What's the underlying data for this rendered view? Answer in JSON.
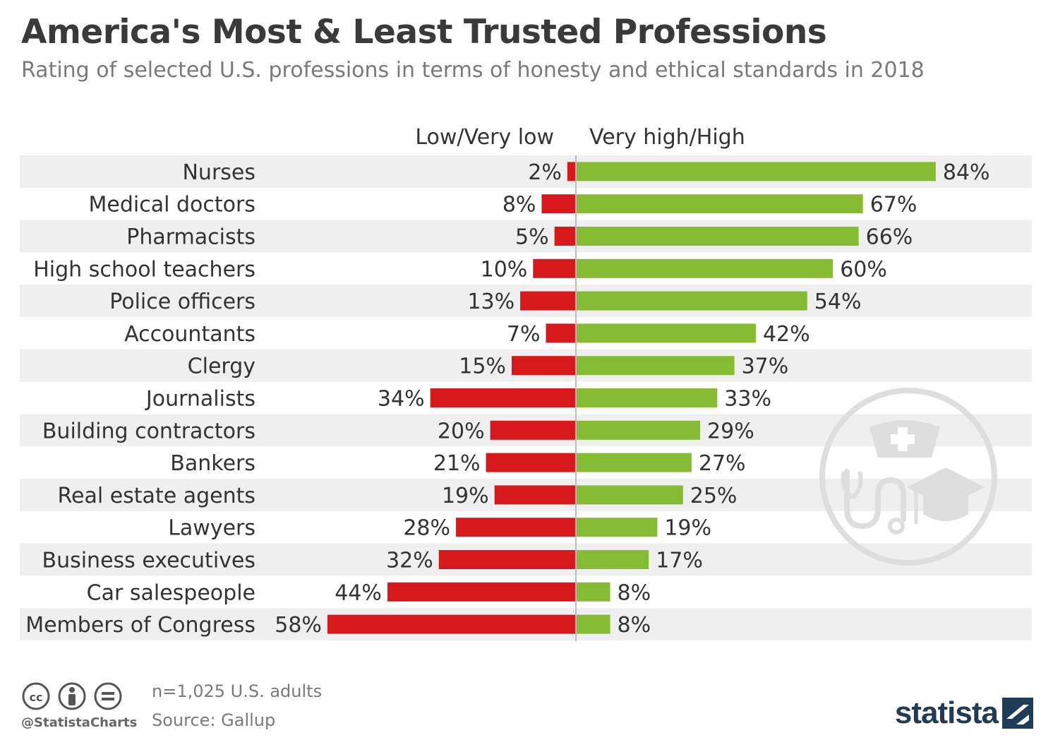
{
  "header": {
    "title": "America's Most & Least Trusted Professions",
    "subtitle": "Rating of selected U.S. professions in terms of honesty and ethical standards in 2018"
  },
  "chart_data": {
    "type": "bar",
    "orientation": "horizontal-diverging",
    "categories": [
      "Nurses",
      "Medical doctors",
      "Pharmacists",
      "High school teachers",
      "Police officers",
      "Accountants",
      "Clergy",
      "Journalists",
      "Building contractors",
      "Bankers",
      "Real estate agents",
      "Lawyers",
      "Business executives",
      "Car salespeople",
      "Members of Congress"
    ],
    "series": [
      {
        "name": "Low/Very low",
        "color": "#d7191c",
        "direction": "left",
        "values": [
          2,
          8,
          5,
          10,
          13,
          7,
          15,
          34,
          20,
          21,
          19,
          28,
          32,
          44,
          58
        ]
      },
      {
        "name": "Very high/High",
        "color": "#86bc34",
        "direction": "right",
        "values": [
          84,
          67,
          66,
          60,
          54,
          42,
          37,
          33,
          29,
          27,
          25,
          19,
          17,
          8,
          8
        ]
      }
    ],
    "value_suffix": "%",
    "legend_position": "top-center",
    "row_stripes": true
  },
  "footer": {
    "handle": "@StatistaCharts",
    "sample": "n=1,025 U.S. adults",
    "source": "Source: Gallup",
    "brand": "statista"
  },
  "colors": {
    "stripe": "#efefef",
    "watermark": "#dedede",
    "axis": "#bdbdbd",
    "brand": "#1f3b55"
  }
}
